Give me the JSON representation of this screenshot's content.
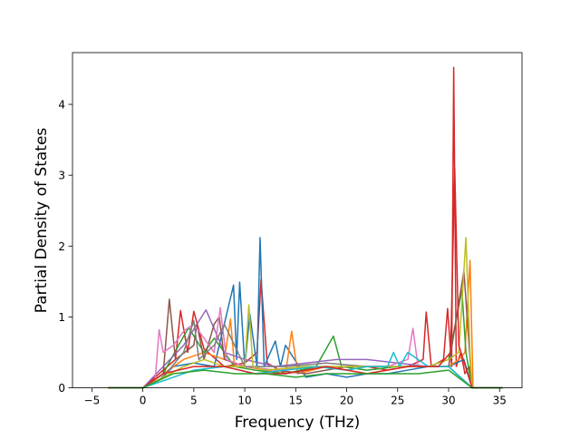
{
  "chart_data": {
    "type": "line",
    "title": "",
    "xlabel": "Frequency (THz)",
    "ylabel": "Partial Density of States",
    "xlim": [
      -6.9,
      37.2
    ],
    "ylim": [
      0,
      4.73
    ],
    "x_ticks": [
      -5,
      0,
      5,
      10,
      15,
      20,
      25,
      30,
      35
    ],
    "y_ticks": [
      0,
      1,
      2,
      3,
      4
    ],
    "x_tick_labels": [
      "−5",
      "0",
      "5",
      "10",
      "15",
      "20",
      "25",
      "30",
      "35"
    ],
    "y_tick_labels": [
      "0",
      "1",
      "2",
      "3",
      "4"
    ],
    "grid": false,
    "legend": "none",
    "line_colors": [
      "#1f77b4",
      "#ff7f0e",
      "#2ca02c",
      "#d62728",
      "#9467bd",
      "#8c564b",
      "#e377c2",
      "#7f7f7f",
      "#bcbd22",
      "#17becf"
    ],
    "series": [
      {
        "color": "#d62728",
        "x": [
          -3.4,
          0,
          2,
          3.2,
          3.7,
          4.4,
          5.0,
          6.0,
          8.0,
          10.0,
          11.2,
          11.6,
          12.2,
          14.0,
          16.0,
          18.0,
          20.0,
          22.0,
          24.0,
          26.0,
          27.5,
          27.8,
          28.3,
          29.5,
          29.9,
          30.3,
          30.5,
          30.75,
          31.2,
          31.6,
          32.0,
          32.3,
          35.3
        ],
        "y": [
          0,
          0,
          0.25,
          0.4,
          1.09,
          0.5,
          1.08,
          0.55,
          0.3,
          0.35,
          0.5,
          1.53,
          0.35,
          0.2,
          0.25,
          0.3,
          0.25,
          0.3,
          0.25,
          0.3,
          0.4,
          1.07,
          0.3,
          0.4,
          1.12,
          0.3,
          4.52,
          0.3,
          0.5,
          0.2,
          0.3,
          0,
          0
        ]
      },
      {
        "color": "#1f77b4",
        "x": [
          -3.4,
          0,
          1.5,
          3.0,
          5.0,
          7.0,
          8.9,
          9.2,
          9.5,
          10.0,
          10.5,
          11.2,
          11.5,
          11.9,
          13.0,
          13.5,
          14.0,
          16.0,
          18.0,
          20.0,
          22.0,
          24.0,
          26.0,
          28.0,
          30.0,
          31.5,
          32.3,
          35.3
        ],
        "y": [
          0,
          0,
          0.1,
          0.3,
          0.35,
          0.3,
          1.45,
          0.4,
          1.49,
          0.3,
          1.04,
          0.3,
          2.12,
          0.3,
          0.66,
          0.3,
          0.6,
          0.15,
          0.2,
          0.15,
          0.2,
          0.2,
          0.25,
          0.3,
          0.3,
          0.4,
          0,
          0
        ]
      },
      {
        "color": "#ff7f0e",
        "x": [
          -3.4,
          0,
          2,
          4,
          6,
          8.0,
          8.6,
          9.0,
          10.0,
          12.0,
          14.0,
          14.6,
          15.2,
          18.0,
          20.0,
          22.0,
          24.0,
          26.0,
          28.0,
          30.0,
          31.0,
          31.6,
          32.1,
          32.4,
          35.3
        ],
        "y": [
          0,
          0,
          0.2,
          0.4,
          0.5,
          0.4,
          0.97,
          0.3,
          0.3,
          0.25,
          0.2,
          0.8,
          0.2,
          0.3,
          0.25,
          0.2,
          0.25,
          0.3,
          0.3,
          0.3,
          0.4,
          0.5,
          1.8,
          0,
          0
        ]
      },
      {
        "color": "#2ca02c",
        "x": [
          -3.4,
          0,
          2,
          3.5,
          4.5,
          6.0,
          7.0,
          9.0,
          11.0,
          14.0,
          17.0,
          18.7,
          19.5,
          22.0,
          25.0,
          28.0,
          30.0,
          31.3,
          31.7,
          32.3,
          35.3
        ],
        "y": [
          0,
          0,
          0.2,
          0.6,
          0.85,
          0.5,
          0.7,
          0.3,
          0.25,
          0.2,
          0.3,
          0.73,
          0.3,
          0.25,
          0.3,
          0.3,
          0.4,
          1.38,
          0.5,
          0,
          0
        ]
      },
      {
        "color": "#9467bd",
        "x": [
          -3.4,
          0,
          2,
          4,
          6.2,
          8.0,
          10.0,
          13.0,
          16.0,
          19.0,
          22.0,
          25.0,
          28.0,
          30.0,
          32.3,
          35.3
        ],
        "y": [
          0,
          0,
          0.3,
          0.6,
          1.1,
          0.5,
          0.4,
          0.3,
          0.35,
          0.4,
          0.4,
          0.35,
          0.3,
          0.3,
          0,
          0
        ]
      },
      {
        "color": "#8c564b",
        "x": [
          -3.4,
          0,
          2,
          2.6,
          3.2,
          5.0,
          5.3,
          6.0,
          7.0,
          7.5,
          8.0,
          10.0,
          13.0,
          16.0,
          20.0,
          24.0,
          28.0,
          30.0,
          31.5,
          32.3,
          35.3
        ],
        "y": [
          0,
          0,
          0.2,
          1.25,
          0.4,
          0.6,
          0.9,
          0.4,
          0.9,
          1.0,
          0.4,
          0.3,
          0.25,
          0.2,
          0.3,
          0.3,
          0.3,
          0.3,
          1.65,
          0,
          0
        ]
      },
      {
        "color": "#e377c2",
        "x": [
          -3.4,
          0,
          1.2,
          1.6,
          2.0,
          3.0,
          4.0,
          5.0,
          6.0,
          7.0,
          7.6,
          8.2,
          10.0,
          13.0,
          16.0,
          20.0,
          24.0,
          26.0,
          26.5,
          27.0,
          28.0,
          30.0,
          32.3,
          35.3
        ],
        "y": [
          0,
          0,
          0.1,
          0.82,
          0.5,
          0.6,
          0.8,
          0.9,
          0.7,
          0.5,
          1.13,
          0.4,
          0.3,
          0.25,
          0.3,
          0.3,
          0.3,
          0.4,
          0.84,
          0.3,
          0.3,
          0.3,
          0,
          0
        ]
      },
      {
        "color": "#7f7f7f",
        "x": [
          -3.4,
          0,
          2,
          4,
          5.0,
          5.5,
          7,
          8,
          10,
          14,
          18,
          22,
          26,
          30,
          32.3,
          35.3
        ],
        "y": [
          0,
          0,
          0.15,
          0.5,
          0.95,
          0.4,
          0.6,
          0.9,
          0.3,
          0.3,
          0.35,
          0.3,
          0.3,
          0.3,
          0,
          0
        ]
      },
      {
        "color": "#bcbd22",
        "x": [
          -3.4,
          0,
          2,
          4,
          6,
          8,
          10.0,
          10.4,
          10.8,
          12.0,
          16.0,
          20.0,
          24.0,
          28.0,
          30.0,
          31.0,
          31.7,
          32.1,
          32.3,
          35.3
        ],
        "y": [
          0,
          0,
          0.15,
          0.3,
          0.4,
          0.3,
          0.3,
          1.17,
          0.3,
          0.25,
          0.3,
          0.3,
          0.3,
          0.3,
          0.4,
          0.5,
          2.12,
          0.5,
          0,
          0
        ]
      },
      {
        "color": "#17becf",
        "x": [
          -3.4,
          0,
          2,
          5,
          8,
          11,
          14,
          17,
          20,
          22,
          24.0,
          24.6,
          25.2,
          26.0,
          28.0,
          30.0,
          32.3,
          35.3
        ],
        "y": [
          0,
          0,
          0.1,
          0.25,
          0.3,
          0.2,
          0.25,
          0.3,
          0.25,
          0.3,
          0.3,
          0.5,
          0.3,
          0.5,
          0.3,
          0.3,
          0,
          0
        ]
      },
      {
        "color": "#d62728",
        "x": [
          -3.4,
          0,
          2,
          5,
          8,
          11,
          14,
          18,
          22,
          26,
          29,
          30.2,
          30.6,
          31.0,
          32.3,
          35.3
        ],
        "y": [
          0,
          0,
          0.2,
          0.3,
          0.3,
          0.2,
          0.2,
          0.3,
          0.2,
          0.3,
          0.3,
          0.5,
          3.1,
          0.6,
          0,
          0
        ]
      },
      {
        "color": "#2ca02c",
        "x": [
          -3.4,
          0,
          3,
          6,
          9,
          12,
          15,
          18,
          21,
          24,
          27,
          30,
          32.3,
          35.3
        ],
        "y": [
          0,
          0,
          0.2,
          0.25,
          0.2,
          0.2,
          0.15,
          0.2,
          0.2,
          0.2,
          0.2,
          0.25,
          0,
          0
        ]
      }
    ]
  }
}
